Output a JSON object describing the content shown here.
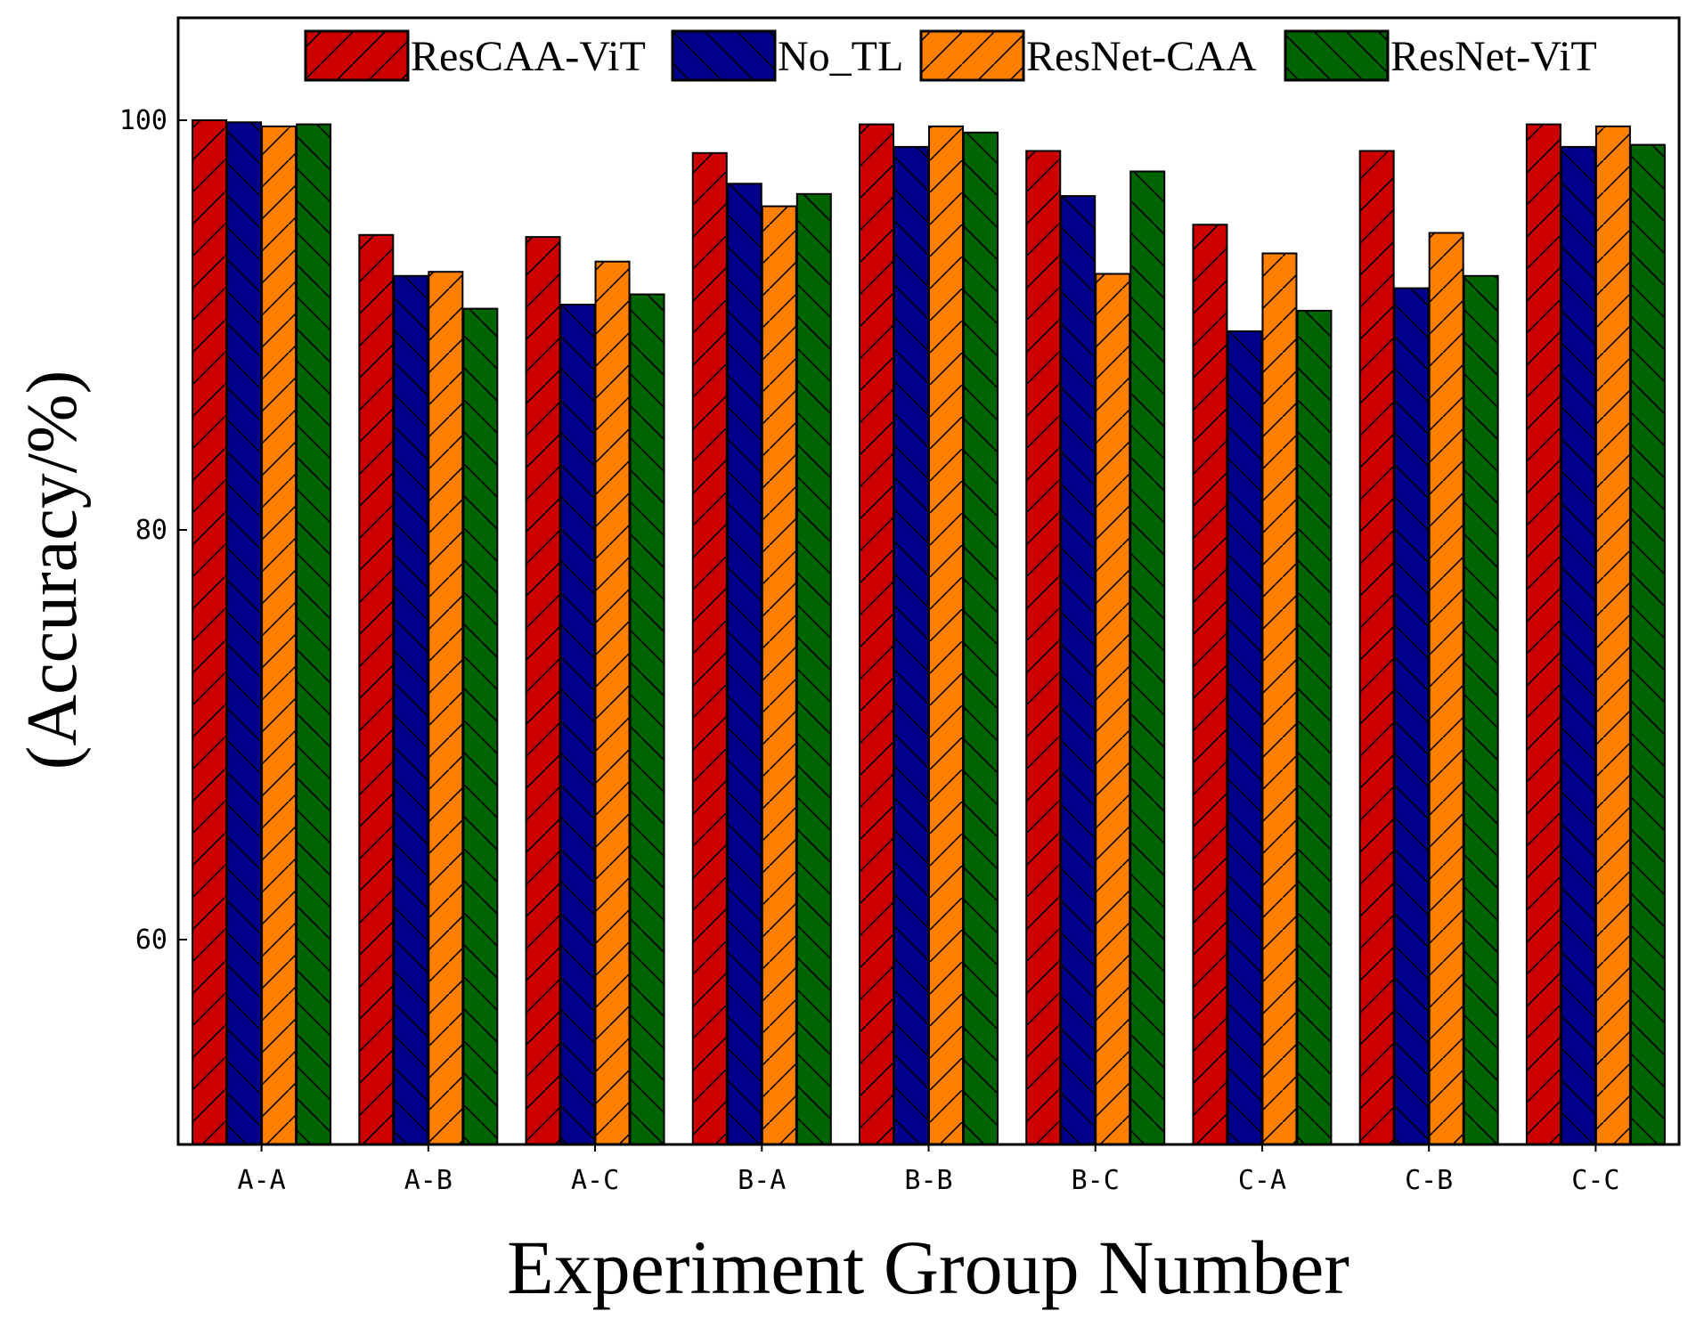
{
  "chart_data": {
    "type": "bar",
    "title": "",
    "xlabel": "Experiment Group Number",
    "ylabel": "(Accuracy/%)",
    "ylim": [
      50,
      105
    ],
    "yticks": [
      60,
      80,
      100
    ],
    "grid": false,
    "legend_position": "top",
    "categories": [
      "A-A",
      "A-B",
      "A-C",
      "B-A",
      "B-B",
      "B-C",
      "C-A",
      "C-B",
      "C-C"
    ],
    "series": [
      {
        "name": "ResCAA-ViT",
        "color": "#cc0000",
        "hatch": "forward",
        "values": [
          100.0,
          94.4,
          94.3,
          98.4,
          99.8,
          98.5,
          94.9,
          98.5,
          99.8
        ]
      },
      {
        "name": "No_TL",
        "color": "#00008b",
        "hatch": "backward",
        "values": [
          99.9,
          92.4,
          91.0,
          96.9,
          98.7,
          96.3,
          89.7,
          91.8,
          98.7
        ]
      },
      {
        "name": "ResNet-CAA",
        "color": "#ff8000",
        "hatch": "forward",
        "values": [
          99.7,
          92.6,
          93.1,
          95.8,
          99.7,
          92.5,
          93.5,
          94.5,
          99.7
        ]
      },
      {
        "name": "ResNet-ViT",
        "color": "#006400",
        "hatch": "backward",
        "values": [
          99.8,
          90.8,
          91.5,
          96.4,
          99.4,
          97.5,
          90.7,
          92.4,
          98.8
        ]
      }
    ]
  }
}
